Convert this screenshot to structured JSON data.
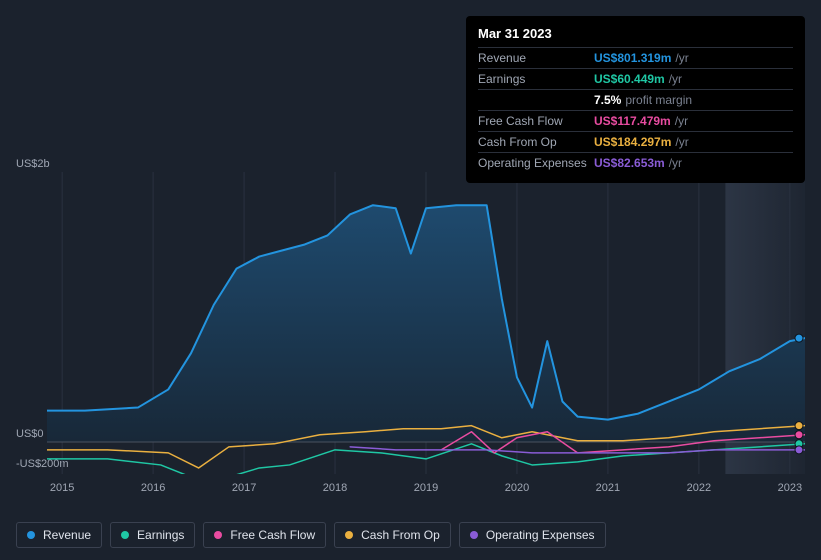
{
  "tooltip": {
    "date": "Mar 31 2023",
    "rows": [
      {
        "label": "Revenue",
        "value": "US$801.319m",
        "suffix": "/yr",
        "color": "#2394df"
      },
      {
        "label": "Earnings",
        "value": "US$60.449m",
        "suffix": "/yr",
        "color": "#1fc7a4"
      },
      {
        "label": "",
        "value": "7.5%",
        "suffix": "profit margin",
        "color": "#ffffff"
      },
      {
        "label": "Free Cash Flow",
        "value": "US$117.479m",
        "suffix": "/yr",
        "color": "#e94ca1"
      },
      {
        "label": "Cash From Op",
        "value": "US$184.297m",
        "suffix": "/yr",
        "color": "#eab040"
      },
      {
        "label": "Operating Expenses",
        "value": "US$82.653m",
        "suffix": "/yr",
        "color": "#8a5cd6"
      }
    ]
  },
  "chart": {
    "type": "line-area",
    "background": "#1b222d",
    "y_ticks": [
      {
        "label": "US$2b",
        "y": 0
      },
      {
        "label": "US$0",
        "y": 270
      },
      {
        "label": "-US$200m",
        "y": 300
      }
    ],
    "x_ticks": [
      "2015",
      "2016",
      "2017",
      "2018",
      "2019",
      "2020",
      "2021",
      "2022",
      "2023"
    ],
    "x_tick_positions": [
      0.02,
      0.14,
      0.26,
      0.38,
      0.5,
      0.62,
      0.74,
      0.86,
      0.98
    ],
    "future_band_start": 0.895,
    "grid_color": "#2a3140",
    "area_fill_top": "#1e4a6e",
    "area_fill_bottom": "#182838",
    "series": [
      {
        "key": "revenue",
        "label": "Revenue",
        "color": "#2394df",
        "width": 2,
        "area": true,
        "points": [
          [
            0.0,
            0.79
          ],
          [
            0.05,
            0.79
          ],
          [
            0.12,
            0.78
          ],
          [
            0.16,
            0.72
          ],
          [
            0.19,
            0.6
          ],
          [
            0.22,
            0.44
          ],
          [
            0.25,
            0.32
          ],
          [
            0.28,
            0.28
          ],
          [
            0.31,
            0.26
          ],
          [
            0.34,
            0.24
          ],
          [
            0.37,
            0.21
          ],
          [
            0.4,
            0.14
          ],
          [
            0.43,
            0.11
          ],
          [
            0.46,
            0.12
          ],
          [
            0.48,
            0.27
          ],
          [
            0.5,
            0.12
          ],
          [
            0.54,
            0.11
          ],
          [
            0.58,
            0.11
          ],
          [
            0.6,
            0.42
          ],
          [
            0.62,
            0.68
          ],
          [
            0.64,
            0.78
          ],
          [
            0.66,
            0.56
          ],
          [
            0.68,
            0.76
          ],
          [
            0.7,
            0.81
          ],
          [
            0.74,
            0.82
          ],
          [
            0.78,
            0.8
          ],
          [
            0.82,
            0.76
          ],
          [
            0.86,
            0.72
          ],
          [
            0.9,
            0.66
          ],
          [
            0.94,
            0.62
          ],
          [
            0.98,
            0.56
          ],
          [
            1.0,
            0.55
          ]
        ]
      },
      {
        "key": "cash_from_op",
        "label": "Cash From Op",
        "color": "#eab040",
        "width": 1.5,
        "points": [
          [
            0.0,
            0.92
          ],
          [
            0.08,
            0.92
          ],
          [
            0.16,
            0.93
          ],
          [
            0.2,
            0.98
          ],
          [
            0.24,
            0.91
          ],
          [
            0.3,
            0.9
          ],
          [
            0.36,
            0.87
          ],
          [
            0.42,
            0.86
          ],
          [
            0.47,
            0.85
          ],
          [
            0.52,
            0.85
          ],
          [
            0.56,
            0.84
          ],
          [
            0.6,
            0.88
          ],
          [
            0.64,
            0.86
          ],
          [
            0.7,
            0.89
          ],
          [
            0.76,
            0.89
          ],
          [
            0.82,
            0.88
          ],
          [
            0.88,
            0.86
          ],
          [
            0.94,
            0.85
          ],
          [
            1.0,
            0.84
          ]
        ]
      },
      {
        "key": "earnings",
        "label": "Earnings",
        "color": "#1fc7a4",
        "width": 1.5,
        "points": [
          [
            0.0,
            0.95
          ],
          [
            0.08,
            0.95
          ],
          [
            0.15,
            0.97
          ],
          [
            0.2,
            1.02
          ],
          [
            0.24,
            1.01
          ],
          [
            0.28,
            0.98
          ],
          [
            0.32,
            0.97
          ],
          [
            0.38,
            0.92
          ],
          [
            0.44,
            0.93
          ],
          [
            0.5,
            0.95
          ],
          [
            0.56,
            0.9
          ],
          [
            0.6,
            0.94
          ],
          [
            0.64,
            0.97
          ],
          [
            0.7,
            0.96
          ],
          [
            0.76,
            0.94
          ],
          [
            0.82,
            0.93
          ],
          [
            0.88,
            0.92
          ],
          [
            0.94,
            0.91
          ],
          [
            1.0,
            0.9
          ]
        ]
      },
      {
        "key": "free_cash_flow",
        "label": "Free Cash Flow",
        "color": "#e94ca1",
        "width": 1.5,
        "points": [
          [
            0.52,
            0.92
          ],
          [
            0.56,
            0.86
          ],
          [
            0.59,
            0.93
          ],
          [
            0.62,
            0.88
          ],
          [
            0.66,
            0.86
          ],
          [
            0.7,
            0.93
          ],
          [
            0.76,
            0.92
          ],
          [
            0.82,
            0.91
          ],
          [
            0.88,
            0.89
          ],
          [
            0.94,
            0.88
          ],
          [
            1.0,
            0.87
          ]
        ]
      },
      {
        "key": "operating_expenses",
        "label": "Operating Expenses",
        "color": "#8a5cd6",
        "width": 1.5,
        "points": [
          [
            0.4,
            0.91
          ],
          [
            0.46,
            0.92
          ],
          [
            0.52,
            0.92
          ],
          [
            0.58,
            0.92
          ],
          [
            0.64,
            0.93
          ],
          [
            0.7,
            0.93
          ],
          [
            0.76,
            0.93
          ],
          [
            0.82,
            0.93
          ],
          [
            0.88,
            0.92
          ],
          [
            0.94,
            0.92
          ],
          [
            1.0,
            0.92
          ]
        ]
      }
    ],
    "end_dots": [
      {
        "color": "#2394df",
        "y": 0.55
      },
      {
        "color": "#eab040",
        "y": 0.84
      },
      {
        "color": "#e94ca1",
        "y": 0.87
      },
      {
        "color": "#1fc7a4",
        "y": 0.9
      },
      {
        "color": "#8a5cd6",
        "y": 0.92
      }
    ]
  },
  "legend": [
    {
      "key": "revenue",
      "label": "Revenue",
      "color": "#2394df"
    },
    {
      "key": "earnings",
      "label": "Earnings",
      "color": "#1fc7a4"
    },
    {
      "key": "free_cash_flow",
      "label": "Free Cash Flow",
      "color": "#e94ca1"
    },
    {
      "key": "cash_from_op",
      "label": "Cash From Op",
      "color": "#eab040"
    },
    {
      "key": "operating_expenses",
      "label": "Operating Expenses",
      "color": "#8a5cd6"
    }
  ]
}
